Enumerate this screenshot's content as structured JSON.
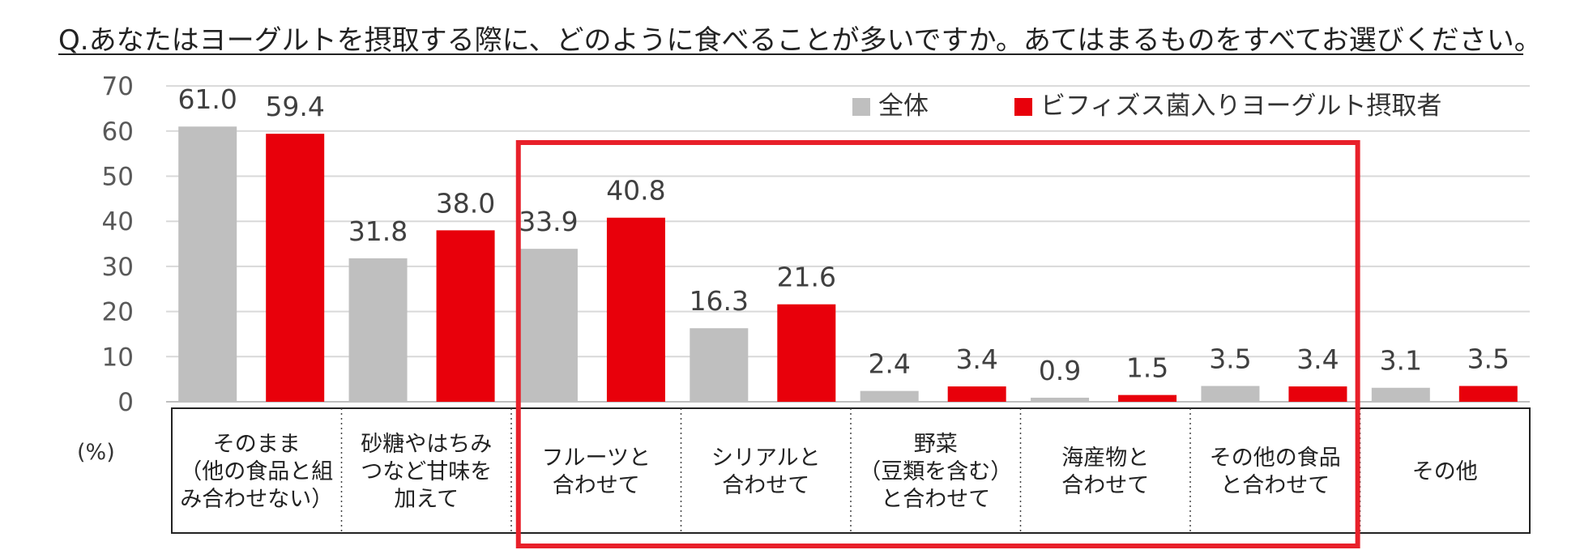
{
  "title": "Q.あなたはヨーグルトを摂取する際に、どのように食べることが多いですか。あてはまるものをすべてお選びください。",
  "unit_label": "(%)",
  "colors": {
    "all": "#BFBFBF",
    "bifidus": "#E8000B",
    "highlight_box": "#E8202A",
    "grid": "#D9D9D9"
  },
  "chart_data": {
    "type": "bar",
    "ylim": [
      0,
      70
    ],
    "yticks": [
      "0",
      "10",
      "20",
      "30",
      "40",
      "50",
      "60",
      "70"
    ],
    "grid": true,
    "legend_position": "top-right",
    "categories": [
      [
        "そのまま",
        "（他の食品と組",
        "み合わせない）"
      ],
      [
        "砂糖やはちみ",
        "つなど甘味を",
        "加えて"
      ],
      [
        "フルーツと",
        "合わせて"
      ],
      [
        "シリアルと",
        "合わせて"
      ],
      [
        "野菜",
        "（豆類を含む）",
        "と合わせて"
      ],
      [
        "海産物と",
        "合わせて"
      ],
      [
        "その他の食品",
        "と合わせて"
      ],
      [
        "その他"
      ]
    ],
    "series": [
      {
        "name": "全体",
        "values": [
          61.0,
          31.8,
          33.9,
          16.3,
          2.4,
          0.9,
          3.5,
          3.1
        ],
        "labels": [
          "61.0",
          "31.8",
          "33.9",
          "16.3",
          "2.4",
          "0.9",
          "3.5",
          "3.1"
        ]
      },
      {
        "name": "ビフィズス菌入りヨーグルト摂取者",
        "values": [
          59.4,
          38.0,
          40.8,
          21.6,
          3.4,
          1.5,
          3.4,
          3.5
        ],
        "labels": [
          "59.4",
          "38.0",
          "40.8",
          "21.6",
          "3.4",
          "1.5",
          "3.4",
          "3.5"
        ]
      }
    ],
    "highlighted_categories": [
      2,
      3,
      4,
      5,
      6
    ]
  }
}
